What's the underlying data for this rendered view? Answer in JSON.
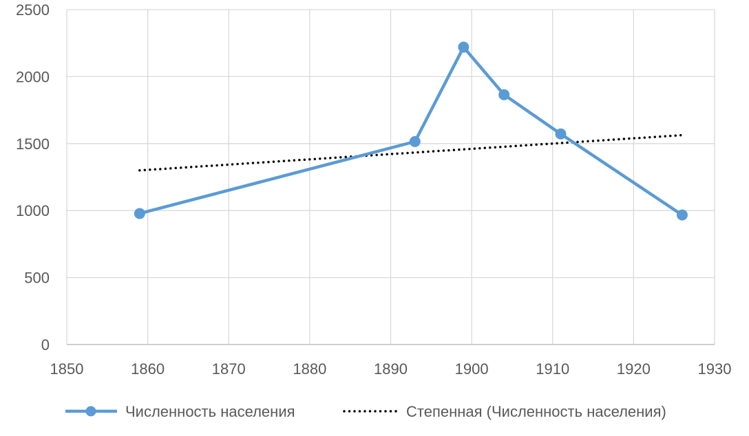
{
  "chart_data": {
    "type": "line",
    "title": "",
    "xlabel": "",
    "ylabel": "",
    "xlim": [
      1850,
      1930
    ],
    "ylim": [
      0,
      2500
    ],
    "x_ticks": [
      1850,
      1860,
      1870,
      1880,
      1890,
      1900,
      1910,
      1920,
      1930
    ],
    "y_ticks": [
      0,
      500,
      1000,
      1500,
      2000,
      2500
    ],
    "grid": true,
    "legend_position": "bottom",
    "series": [
      {
        "name": "Численность населения",
        "color": "#5b9bd5",
        "style": "solid-with-markers",
        "points": [
          {
            "x": 1859,
            "y": 978
          },
          {
            "x": 1893,
            "y": 1515
          },
          {
            "x": 1899,
            "y": 2220
          },
          {
            "x": 1904,
            "y": 1865
          },
          {
            "x": 1911,
            "y": 1572
          },
          {
            "x": 1926,
            "y": 967
          }
        ]
      },
      {
        "name": "Степенная (Численность населения)",
        "color": "#000000",
        "style": "dotted-trendline",
        "trend": "power",
        "points": [
          {
            "x": 1859,
            "y": 1300
          },
          {
            "x": 1926,
            "y": 1563
          }
        ]
      }
    ]
  }
}
